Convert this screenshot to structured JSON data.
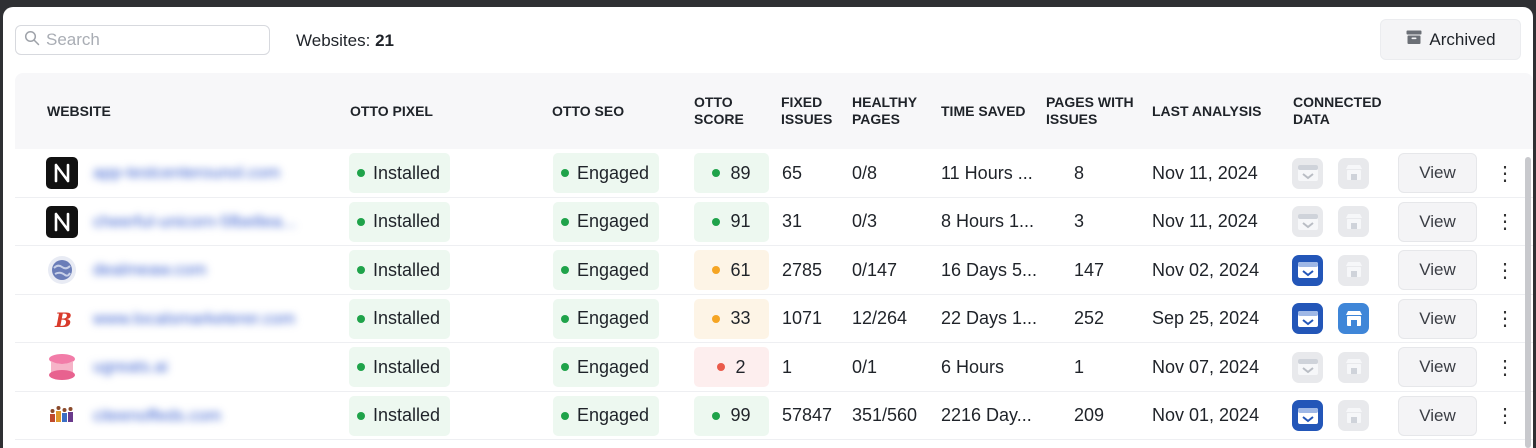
{
  "search": {
    "placeholder": "Search",
    "value": ""
  },
  "summary": {
    "label": "Websites:",
    "count": "21"
  },
  "archived_button": {
    "label": "Archived"
  },
  "columns": {
    "website": "WEBSITE",
    "otto_pixel": "OTTO PIXEL",
    "otto_seo": "OTTO SEO",
    "otto_score_1": "OTTO",
    "otto_score_2": "SCORE",
    "fixed_issues_1": "FIXED",
    "fixed_issues_2": "ISSUES",
    "healthy_pages_1": "HEALTHY",
    "healthy_pages_2": "PAGES",
    "time_saved": "TIME SAVED",
    "pages_with_issues_1": "PAGES WITH",
    "pages_with_issues_2": "ISSUES",
    "last_analysis": "LAST ANALYSIS",
    "connected_data_1": "CONNECTED",
    "connected_data_2": "DATA"
  },
  "colors": {
    "green": "#1fa34a",
    "orange": "#f5a524",
    "red": "#ea5b4b",
    "score_green_bg": "#edf8f0",
    "score_orange_bg": "#fdf4e6",
    "score_red_bg": "#fdeeee",
    "connected_blue": "#2356b8"
  },
  "rows": [
    {
      "favicon": "n-logo-icon",
      "site": "app-testcenterounol.com",
      "pixel": "Installed",
      "seo": "Engaged",
      "score": "89",
      "score_level": "green",
      "fixed": "65",
      "healthy": "0/8",
      "time_saved": "11 Hours ...",
      "pages_issues": "8",
      "last_analysis": "Nov 11, 2024",
      "gsc": false,
      "gbp": false,
      "view": "View"
    },
    {
      "favicon": "n-logo-icon",
      "site": "cheerful-unicorn-5fbe8ea...",
      "pixel": "Installed",
      "seo": "Engaged",
      "score": "91",
      "score_level": "green",
      "fixed": "31",
      "healthy": "0/3",
      "time_saved": "8 Hours 1...",
      "pages_issues": "3",
      "last_analysis": "Nov 11, 2024",
      "gsc": false,
      "gbp": false,
      "view": "View"
    },
    {
      "favicon": "globe-icon",
      "site": "dealmeaw.com",
      "pixel": "Installed",
      "seo": "Engaged",
      "score": "61",
      "score_level": "orange",
      "fixed": "2785",
      "healthy": "0/147",
      "time_saved": "16 Days 5...",
      "pages_issues": "147",
      "last_analysis": "Nov 02, 2024",
      "gsc": true,
      "gbp": false,
      "view": "View"
    },
    {
      "favicon": "b-logo-icon",
      "site": "www.localsmarketerer.com",
      "pixel": "Installed",
      "seo": "Engaged",
      "score": "33",
      "score_level": "orange",
      "fixed": "1071",
      "healthy": "12/264",
      "time_saved": "22 Days 1...",
      "pages_issues": "252",
      "last_analysis": "Sep 25, 2024",
      "gsc": true,
      "gbp": true,
      "view": "View"
    },
    {
      "favicon": "ribbon-logo-icon",
      "site": "ugreats.ai",
      "pixel": "Installed",
      "seo": "Engaged",
      "score": "2",
      "score_level": "red",
      "fixed": "1",
      "healthy": "0/1",
      "time_saved": "6 Hours",
      "pages_issues": "1",
      "last_analysis": "Nov 07, 2024",
      "gsc": false,
      "gbp": false,
      "view": "View"
    },
    {
      "favicon": "people-logo-icon",
      "site": "citeenoffeds.com",
      "pixel": "Installed",
      "seo": "Engaged",
      "score": "99",
      "score_level": "green",
      "fixed": "57847",
      "healthy": "351/560",
      "time_saved": "2216 Day...",
      "pages_issues": "209",
      "last_analysis": "Nov 01, 2024",
      "gsc": true,
      "gbp": false,
      "view": "View"
    }
  ]
}
